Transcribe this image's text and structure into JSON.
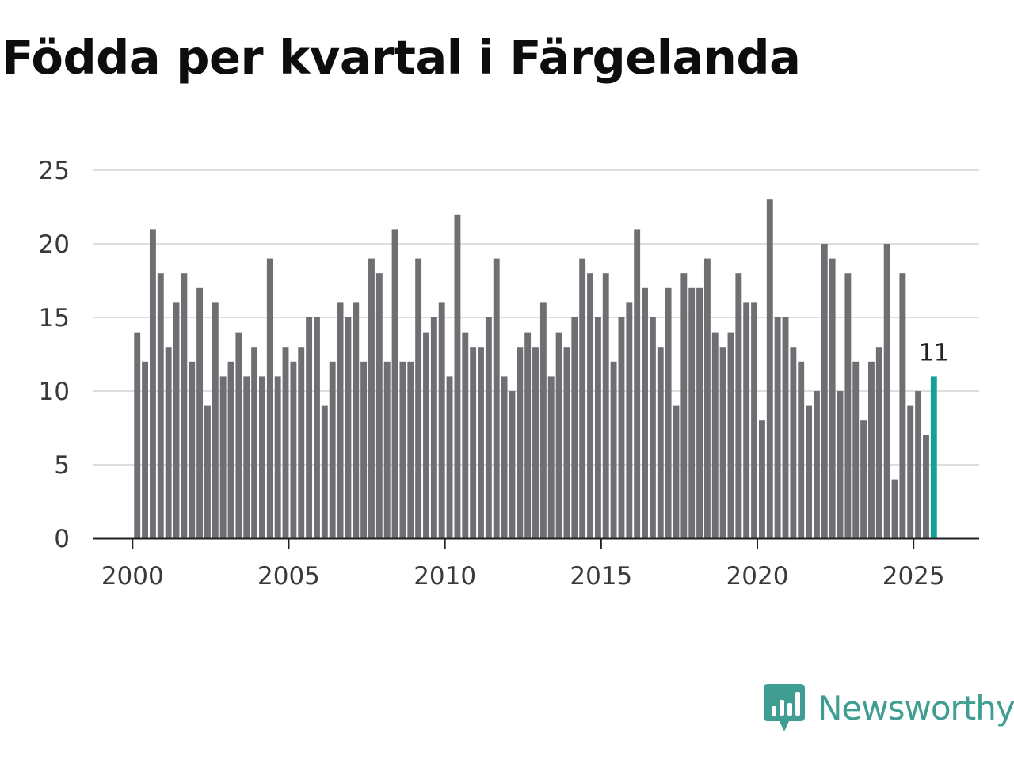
{
  "title": "Födda per kvartal i Färgelanda",
  "brand": {
    "name": "Newsworthy",
    "icon": "newsworthy-logo-icon"
  },
  "colors": {
    "bar": "#6f6e73",
    "highlight": "#13a396",
    "grid": "#dedede",
    "axis": "#222222",
    "brand": "#3f9e91"
  },
  "chart_data": {
    "type": "bar",
    "title": "Födda per kvartal i Färgelanda",
    "xlabel": "",
    "ylabel": "",
    "start_year": 2000,
    "start_quarter": 1,
    "values": [
      14,
      12,
      21,
      18,
      13,
      16,
      18,
      12,
      17,
      9,
      16,
      11,
      12,
      14,
      11,
      13,
      11,
      19,
      11,
      13,
      12,
      13,
      15,
      15,
      9,
      12,
      16,
      15,
      16,
      12,
      19,
      18,
      12,
      21,
      12,
      12,
      19,
      14,
      15,
      16,
      11,
      22,
      14,
      13,
      13,
      15,
      19,
      11,
      10,
      13,
      14,
      13,
      16,
      11,
      14,
      13,
      15,
      19,
      18,
      15,
      18,
      12,
      15,
      16,
      21,
      17,
      15,
      13,
      17,
      9,
      18,
      17,
      17,
      19,
      14,
      13,
      14,
      18,
      16,
      16,
      8,
      23,
      15,
      15,
      13,
      12,
      9,
      10,
      20,
      19,
      10,
      18,
      12,
      8,
      12,
      13,
      20,
      4,
      18,
      9,
      10,
      7,
      11
    ],
    "highlight_index": 102,
    "highlight_label": "11",
    "yticks": [
      0,
      5,
      10,
      15,
      20,
      25
    ],
    "ytick_labels": [
      "0",
      "5",
      "10",
      "15",
      "20",
      "25"
    ],
    "ylim": [
      0,
      25
    ],
    "xticks": [
      2000,
      2005,
      2010,
      2015,
      2020,
      2025
    ],
    "xtick_labels": [
      "2000",
      "2005",
      "2010",
      "2015",
      "2020",
      "2025"
    ],
    "xlim": [
      1998.75,
      2027.1
    ],
    "grid": true,
    "legend": "none"
  }
}
